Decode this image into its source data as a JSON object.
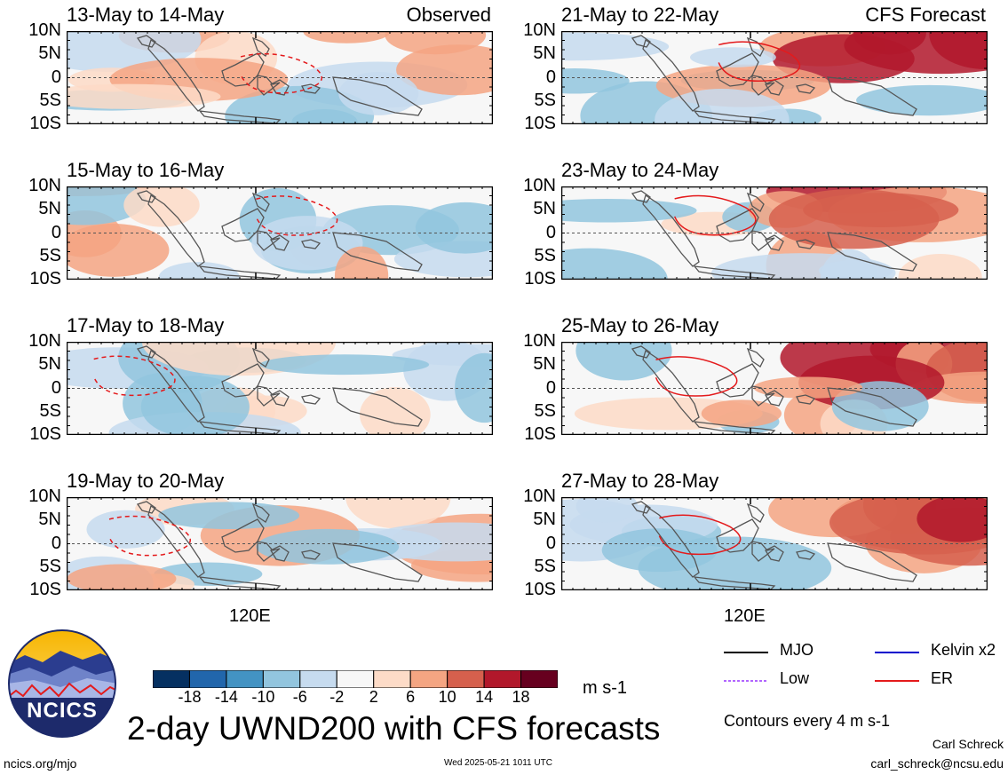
{
  "chart_data": {
    "type": "heatmap",
    "title": "2-day UWND200 with CFS forecasts",
    "units": "m s-1",
    "variable": "UWND200",
    "lat_ticks": [
      "10N",
      "5N",
      "0",
      "5S",
      "10S"
    ],
    "lon_ticks": [
      "120E"
    ],
    "contour_note": "Contours every 4 m s-1",
    "colorbar": {
      "labels": [
        "-18",
        "-14",
        "-10",
        "-6",
        "-2",
        "2",
        "6",
        "10",
        "14",
        "18"
      ],
      "colors": [
        "#053061",
        "#2166ac",
        "#4393c3",
        "#92c5de",
        "#c6dbef",
        "#f7f7f7",
        "#fddbc7",
        "#f4a582",
        "#d6604d",
        "#b2182b",
        "#67001f"
      ]
    },
    "legend": [
      {
        "name": "MJO",
        "color": "#000000",
        "style": "solid"
      },
      {
        "name": "Kelvin x2",
        "color": "#0000cc",
        "style": "solid"
      },
      {
        "name": "Low",
        "color": "#b266ff",
        "style": "dashed"
      },
      {
        "name": "ER",
        "color": "#e41a1c",
        "style": "solid"
      }
    ],
    "observed_label": "Observed",
    "forecast_label": "CFS Forecast",
    "panels": [
      {
        "title": "13-May to 14-May",
        "column": "observed",
        "row": 0
      },
      {
        "title": "15-May to 16-May",
        "column": "observed",
        "row": 1
      },
      {
        "title": "17-May to 18-May",
        "column": "observed",
        "row": 2
      },
      {
        "title": "19-May to 20-May",
        "column": "observed",
        "row": 3
      },
      {
        "title": "21-May to 22-May",
        "column": "forecast",
        "row": 0
      },
      {
        "title": "23-May to 24-May",
        "column": "forecast",
        "row": 1
      },
      {
        "title": "25-May to 26-May",
        "column": "forecast",
        "row": 2
      },
      {
        "title": "27-May to 28-May",
        "column": "forecast",
        "row": 3
      }
    ]
  },
  "footer": {
    "logo_text": "NCICS",
    "url": "ncics.org/mjo",
    "timestamp": "Wed 2025-05-21 1011 UTC",
    "author": "Carl Schreck",
    "email": "carl_schreck@ncsu.edu"
  }
}
